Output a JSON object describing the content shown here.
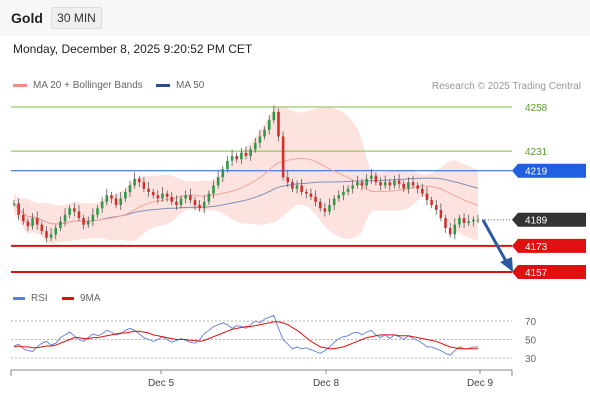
{
  "header": {
    "title": "Gold",
    "timeframe": "30 MIN"
  },
  "datetime": "Monday, December 8, 2025 9:20:52 PM CET",
  "legend": {
    "bollinger": "MA 20 + Bollinger Bands",
    "ma50": "MA 50",
    "rsi": "RSI",
    "ma9": "9MA"
  },
  "credit": "Research © 2025 Trading Central",
  "colors": {
    "bollinger": "#f48c84",
    "ma50": "#2a4a8a",
    "green": "#7cbf3c",
    "blue": "#1f5fe0",
    "red": "#e01010",
    "dark": "#333333",
    "rsi": "#5b7fdc",
    "arrow": "#2c5aa0"
  },
  "chart_data": {
    "type": "candlestick",
    "levels": [
      {
        "value": 4258,
        "label": "4258",
        "style": "green"
      },
      {
        "value": 4231,
        "label": "4231",
        "style": "green"
      },
      {
        "value": 4219,
        "label": "4219",
        "style": "blue-box"
      },
      {
        "value": 4189,
        "label": "4189",
        "style": "dark-box"
      },
      {
        "value": 4173,
        "label": "4173",
        "style": "red-box"
      },
      {
        "value": 4157,
        "label": "4157",
        "style": "red-box"
      }
    ],
    "x_labels": [
      "Dec 5",
      "Dec 8",
      "Dec 9"
    ],
    "rsi_levels": [
      70,
      50,
      30
    ],
    "price": [
      4199,
      4192,
      4188,
      4185,
      4190,
      4186,
      4182,
      4178,
      4180,
      4184,
      4188,
      4192,
      4196,
      4194,
      4190,
      4186,
      4188,
      4192,
      4196,
      4200,
      4204,
      4202,
      4198,
      4202,
      4206,
      4210,
      4214,
      4212,
      4208,
      4206,
      4204,
      4202,
      4205,
      4203,
      4200,
      4198,
      4202,
      4204,
      4201,
      4198,
      4196,
      4200,
      4205,
      4210,
      4215,
      4220,
      4225,
      4228,
      4226,
      4230,
      4228,
      4232,
      4236,
      4240,
      4244,
      4250,
      4255,
      4240,
      4215,
      4212,
      4208,
      4210,
      4206,
      4205,
      4203,
      4200,
      4196,
      4194,
      4198,
      4202,
      4204,
      4206,
      4208,
      4210,
      4212,
      4210,
      4214,
      4216,
      4212,
      4210,
      4212,
      4210,
      4213,
      4211,
      4208,
      4212,
      4210,
      4208,
      4205,
      4201,
      4198,
      4195,
      4190,
      4184,
      4180,
      4186,
      4190,
      4187,
      4188,
      4189,
      4189
    ],
    "rsi": [
      43,
      45,
      40,
      38,
      37,
      42,
      46,
      48,
      44,
      46,
      52,
      55,
      58,
      54,
      50,
      48,
      52,
      56,
      54,
      56,
      60,
      58,
      55,
      56,
      60,
      62,
      60,
      56,
      52,
      50,
      48,
      50,
      53,
      50,
      47,
      49,
      51,
      49,
      47,
      46,
      50,
      56,
      60,
      64,
      66,
      68,
      66,
      62,
      65,
      64,
      62,
      66,
      70,
      68,
      72,
      74,
      76,
      62,
      50,
      45,
      40,
      42,
      40,
      41,
      39,
      37,
      35,
      38,
      42,
      47,
      51,
      53,
      54,
      57,
      58,
      55,
      58,
      60,
      55,
      52,
      55,
      51,
      55,
      53,
      50,
      54,
      51,
      49,
      46,
      42,
      42,
      40,
      38,
      35,
      33,
      38,
      42,
      40,
      40,
      42,
      42
    ],
    "rsi_ma": [
      42,
      43,
      42,
      42,
      41,
      41,
      42,
      43,
      43,
      44,
      46,
      48,
      50,
      52,
      52,
      51,
      51,
      52,
      52,
      53,
      54,
      55,
      56,
      57,
      57,
      58,
      59,
      59,
      58,
      57,
      55,
      54,
      53,
      52,
      51,
      50,
      50,
      50,
      49,
      49,
      48,
      49,
      51,
      53,
      55,
      57,
      59,
      61,
      62,
      63,
      64,
      64,
      65,
      66,
      67,
      68,
      69,
      69,
      68,
      66,
      63,
      60,
      56,
      52,
      48,
      45,
      42,
      41,
      40,
      40,
      41,
      42,
      44,
      46,
      48,
      50,
      52,
      53,
      54,
      55,
      55,
      55,
      55,
      54,
      54,
      54,
      53,
      52,
      51,
      50,
      49,
      48,
      46,
      44,
      42,
      41,
      40,
      40,
      40,
      40,
      40
    ]
  }
}
